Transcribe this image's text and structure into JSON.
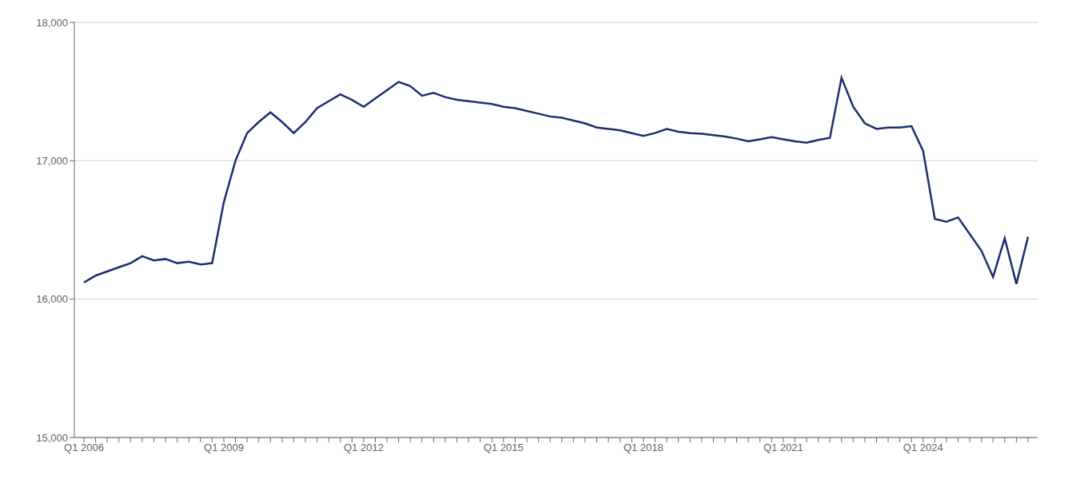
{
  "chart_data": {
    "type": "line",
    "categories": [
      "Q1 2006",
      null,
      null,
      null,
      null,
      null,
      null,
      null,
      null,
      null,
      null,
      null,
      "Q1 2009",
      null,
      null,
      null,
      null,
      null,
      null,
      null,
      null,
      null,
      null,
      null,
      "Q1 2012",
      null,
      null,
      null,
      null,
      null,
      null,
      null,
      null,
      null,
      null,
      null,
      "Q1 2015",
      null,
      null,
      null,
      null,
      null,
      null,
      null,
      null,
      null,
      null,
      null,
      "Q1 2018",
      null,
      null,
      null,
      null,
      null,
      null,
      null,
      null,
      null,
      null,
      null,
      "Q1 2021",
      null,
      null,
      null,
      null,
      null,
      null,
      null,
      null,
      null,
      null,
      null,
      "Q1 2024",
      null,
      null,
      null,
      null,
      null,
      null,
      null,
      null,
      null
    ],
    "values": [
      16120,
      16170,
      16200,
      16230,
      16260,
      16310,
      16280,
      16290,
      16260,
      16270,
      16250,
      16260,
      16700,
      17000,
      17200,
      17280,
      17350,
      17280,
      17200,
      17280,
      17380,
      17430,
      17480,
      17440,
      17390,
      17450,
      17510,
      17570,
      17540,
      17470,
      17490,
      17460,
      17440,
      17430,
      17420,
      17410,
      17390,
      17380,
      17360,
      17340,
      17320,
      17310,
      17290,
      17270,
      17240,
      17230,
      17220,
      17200,
      17180,
      17200,
      17230,
      17210,
      17200,
      17195,
      17185,
      17175,
      17160,
      17140,
      17155,
      17170,
      17155,
      17140,
      17130,
      17150,
      17165,
      17600,
      17390,
      17270,
      17230,
      17240,
      17240,
      17250,
      17070,
      16580,
      16560,
      16590,
      16470,
      16350,
      16160,
      16440,
      16110,
      16450
    ],
    "color": "#1b2f6e",
    "ylim": [
      15000,
      18000
    ],
    "yticks": [
      {
        "value": 15000,
        "label": "15,000"
      },
      {
        "value": 16000,
        "label": "16,000"
      },
      {
        "value": 17000,
        "label": "17,000"
      },
      {
        "value": 18000,
        "label": "18,000"
      }
    ],
    "grid": true
  }
}
